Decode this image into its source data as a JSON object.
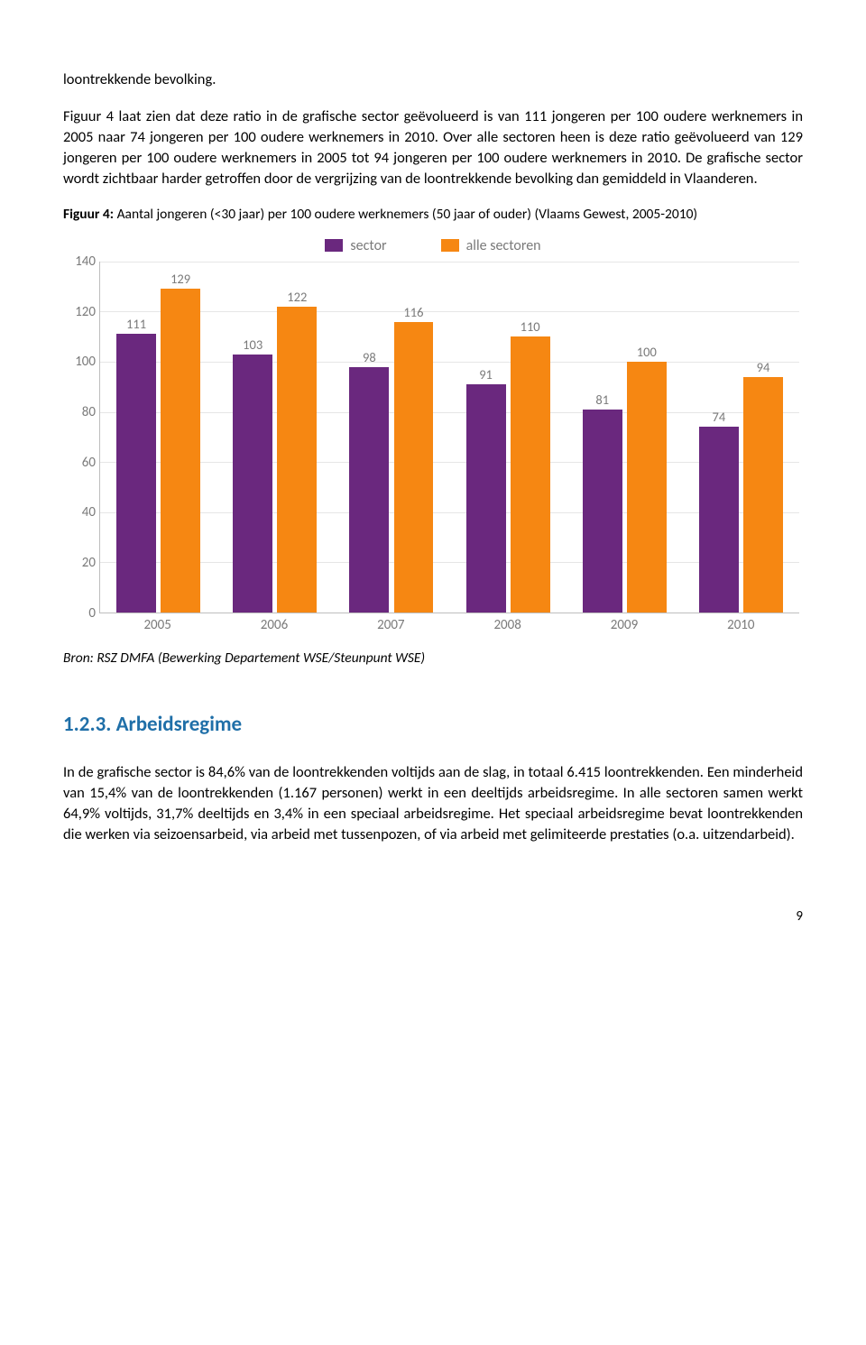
{
  "para1_run1": "loontrekkende bevolking.",
  "para2": "Figuur 4 laat zien dat deze ratio in de grafische sector geëvolueerd is van 111 jongeren per 100 oudere werknemers in 2005 naar 74 jongeren per 100 oudere werknemers in 2010. Over alle sectoren heen is deze ratio geëvolueerd van 129 jongeren per 100 oudere werknemers in 2005 tot 94 jongeren per 100 oudere werknemers in 2010. De grafische sector wordt zichtbaar harder getroffen door de vergrijzing van de loontrekkende bevolking dan gemiddeld in Vlaanderen.",
  "figcaption_bold": "Figuur 4:",
  "figcaption_rest": " Aantal jongeren (<30 jaar) per 100 oudere werknemers (50 jaar of ouder) (Vlaams Gewest, 2005-2010)",
  "legend": {
    "sector": {
      "label": "sector",
      "color": "#6a287e"
    },
    "all": {
      "label": "alle sectoren",
      "color": "#f68712"
    }
  },
  "chart": {
    "ymax": 140,
    "ytick_step": 20,
    "grid_color": "#e6e6e6",
    "axis_color": "#bdbdbd",
    "tick_font_color": "#7a7a7a",
    "categories": [
      "2005",
      "2006",
      "2007",
      "2008",
      "2009",
      "2010"
    ],
    "series": {
      "sector": {
        "color": "#6a287e",
        "values": [
          111,
          103,
          98,
          91,
          81,
          74
        ]
      },
      "all": {
        "color": "#f68712",
        "values": [
          129,
          122,
          116,
          110,
          100,
          94
        ]
      }
    }
  },
  "citation": "Bron: RSZ DMFA (Bewerking Departement WSE/Steunpunt WSE)",
  "heading": "1.2.3. Arbeidsregime",
  "para3": "In de grafische sector is 84,6% van de loontrekkenden voltijds aan de slag, in totaal 6.415 loontrekkenden. Een minderheid van 15,4% van de loontrekkenden (1.167 personen) werkt in een deeltijds arbeidsregime. In alle sectoren samen werkt 64,9% voltijds, 31,7% deeltijds en 3,4% in een speciaal arbeidsregime. Het speciaal arbeidsregime bevat loontrekkenden die werken via seizoensarbeid, via arbeid met tussenpozen, of via arbeid met gelimiteerde prestaties (o.a. uitzendarbeid).",
  "pagenum": "9"
}
